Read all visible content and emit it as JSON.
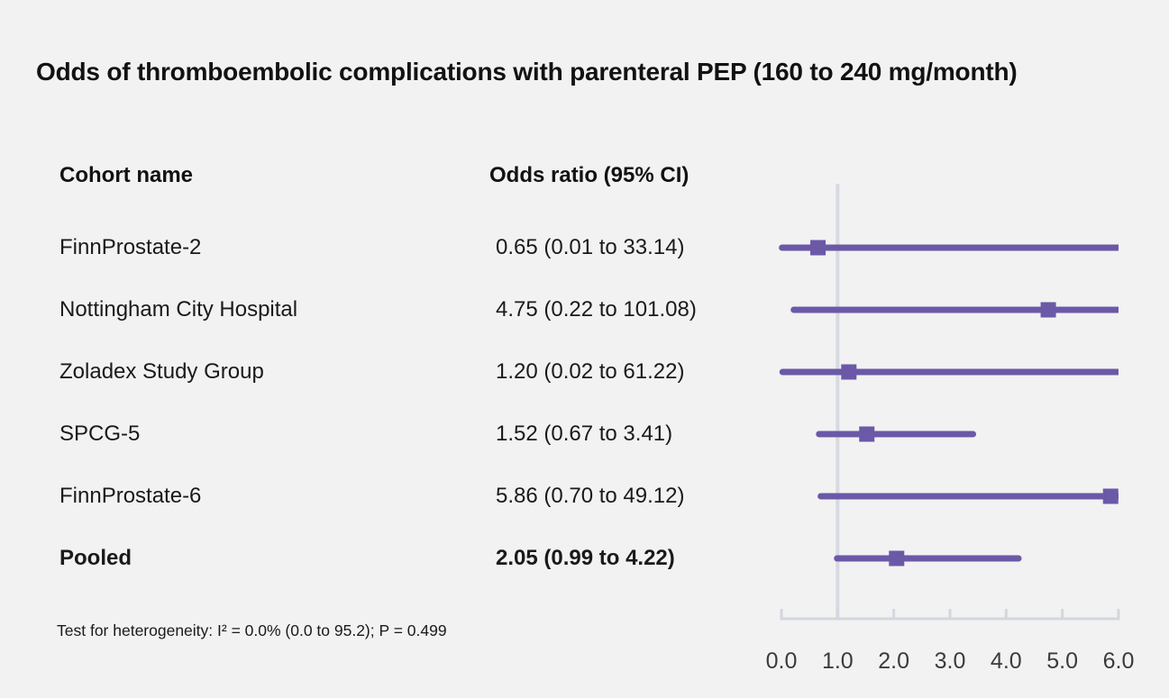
{
  "title": "Odds of thromboembolic complications with parenteral PEP (160 to 240 mg/month)",
  "table": {
    "col1_header": "Cohort name",
    "col2_header": "Odds ratio (95% CI)"
  },
  "footnote": "Test for heterogeneity: I² = 0.0% (0.0 to 95.2); P = 0.499",
  "colors": {
    "background": "#f2f2f2",
    "accent_purple": "#6b59a8",
    "reference_line": "#d6dae1",
    "axis_line": "#d3d8df",
    "text": "#1a1a1a"
  },
  "chart_data": {
    "type": "forest",
    "title": "Odds of thromboembolic complications with parenteral PEP (160 to 240 mg/month)",
    "xlabel": "",
    "ylabel": "",
    "xlim": [
      0.0,
      6.0
    ],
    "x_tick_labels": [
      "0.0",
      "1.0",
      "2.0",
      "3.0",
      "4.0",
      "5.0",
      "6.0"
    ],
    "x_tick_values": [
      0,
      1,
      2,
      3,
      4,
      5,
      6
    ],
    "reference_line_x": 1.0,
    "grid": false,
    "rows": [
      {
        "label": "FinnProstate-2",
        "or_text": "0.65 (0.01 to 33.14)",
        "or": 0.65,
        "ci_low": 0.01,
        "ci_high": 33.14,
        "bold": false
      },
      {
        "label": "Nottingham City Hospital",
        "or_text": "4.75 (0.22 to 101.08)",
        "or": 4.75,
        "ci_low": 0.22,
        "ci_high": 101.08,
        "bold": false
      },
      {
        "label": "Zoladex Study Group",
        "or_text": "1.20 (0.02 to 61.22)",
        "or": 1.2,
        "ci_low": 0.02,
        "ci_high": 61.22,
        "bold": false
      },
      {
        "label": "SPCG-5",
        "or_text": "1.52 (0.67 to 3.41)",
        "or": 1.52,
        "ci_low": 0.67,
        "ci_high": 3.41,
        "bold": false
      },
      {
        "label": "FinnProstate-6",
        "or_text": "5.86 (0.70 to 49.12)",
        "or": 5.86,
        "ci_low": 0.7,
        "ci_high": 49.12,
        "bold": false
      },
      {
        "label": "Pooled",
        "or_text": "2.05 (0.99 to 4.22)",
        "or": 2.05,
        "ci_low": 0.99,
        "ci_high": 4.22,
        "bold": true
      }
    ]
  }
}
